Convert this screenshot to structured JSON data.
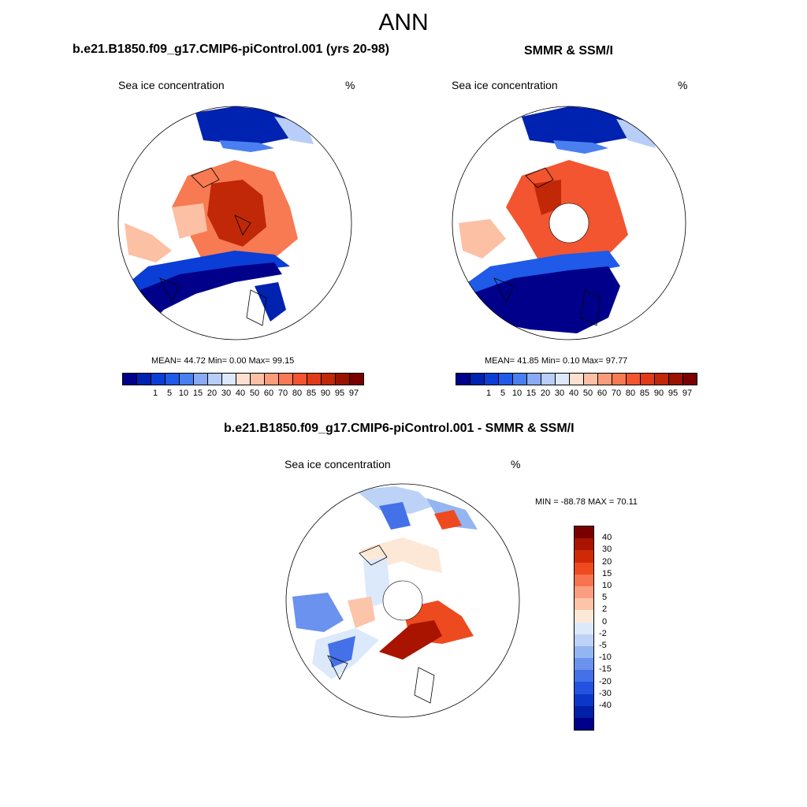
{
  "figure_title": "ANN",
  "panels": [
    {
      "title": "b.e21.B1850.f09_g17.CMIP6-piControl.001 (yrs 20-98)",
      "variable": "Sea ice concentration",
      "units": "%",
      "stats": "MEAN=  44.72  Min=   0.00  Max=  99.15"
    },
    {
      "title": "SMMR & SSM/I",
      "variable": "Sea ice concentration",
      "units": "%",
      "stats": "MEAN=  41.85  Min=   0.10  Max=  97.77"
    },
    {
      "title": "b.e21.B1850.f09_g17.CMIP6-piControl.001 - SMMR & SSM/I",
      "variable": "Sea ice concentration",
      "units": "%",
      "stats": "MIN = -88.78 MAX =  70.11"
    }
  ],
  "colorbar_abs": {
    "colors": [
      "#00008a",
      "#0022b0",
      "#0a3ed6",
      "#1f5ae8",
      "#4a7ff0",
      "#8aaaf5",
      "#b8cef8",
      "#dce8fb",
      "#fde0d0",
      "#fcc0a5",
      "#fa9c7a",
      "#f77a52",
      "#f25530",
      "#e03a18",
      "#c02808",
      "#991300",
      "#7a0000"
    ],
    "labels": [
      "1",
      "5",
      "10",
      "15",
      "20",
      "30",
      "40",
      "50",
      "60",
      "70",
      "80",
      "85",
      "90",
      "95",
      "97"
    ]
  },
  "colorbar_diff": {
    "colors": [
      "#7a0000",
      "#a81400",
      "#cf2a08",
      "#ee4a20",
      "#f87450",
      "#fb9e80",
      "#fcc4a8",
      "#fde8d8",
      "#dce9fb",
      "#bcd2f7",
      "#93b5f2",
      "#6a92ee",
      "#4470e8",
      "#2452e0",
      "#0b36c8",
      "#0020a8",
      "#000088"
    ],
    "labels": [
      "40",
      "30",
      "20",
      "15",
      "10",
      "5",
      "2",
      "0",
      "-2",
      "-5",
      "-10",
      "-15",
      "-20",
      "-30",
      "-40"
    ]
  },
  "chart_data": {
    "type": "heatmap",
    "projection": "north polar stereographic",
    "title": "ANN",
    "maps": [
      {
        "name": "model",
        "mean": 44.72,
        "min": 0.0,
        "max": 99.15
      },
      {
        "name": "SMMR & SSM/I",
        "mean": 41.85,
        "min": 0.1,
        "max": 97.77
      },
      {
        "name": "model - obs",
        "min": -88.78,
        "max": 70.11
      }
    ],
    "levels_abs": [
      1,
      5,
      10,
      15,
      20,
      30,
      40,
      50,
      60,
      70,
      80,
      85,
      90,
      95,
      97
    ],
    "levels_diff": [
      -40,
      -30,
      -20,
      -15,
      -10,
      -5,
      -2,
      0,
      2,
      5,
      10,
      15,
      20,
      30,
      40
    ]
  }
}
